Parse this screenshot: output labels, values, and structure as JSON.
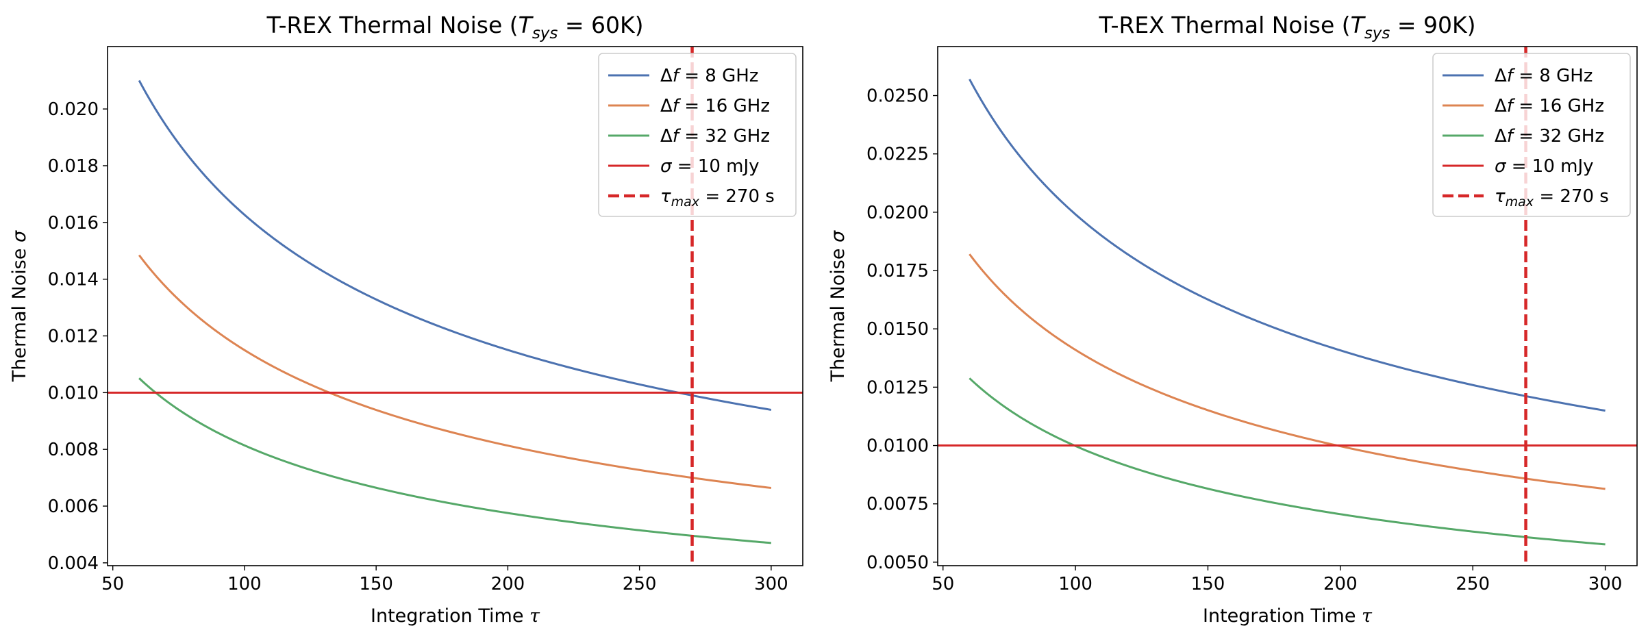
{
  "figure": {
    "panel_count": 2
  },
  "chart_data": [
    {
      "type": "line",
      "title": "T-REX Thermal Noise (T_sys = 60K)",
      "title_parts": {
        "prefix": "T-REX Thermal Noise (",
        "symbol": "T",
        "subscript": "sys",
        "suffix": " = 60K)"
      },
      "xlabel": "Integration Time",
      "xlabel_symbol": "τ",
      "ylabel": "Thermal Noise",
      "ylabel_symbol": "σ",
      "xlim": [
        48,
        312
      ],
      "ylim": [
        0.0039,
        0.0222
      ],
      "x_ticks": [
        50,
        100,
        150,
        200,
        250,
        300
      ],
      "x_tick_labels": [
        "50",
        "100",
        "150",
        "200",
        "250",
        "300"
      ],
      "y_ticks": [
        0.004,
        0.006,
        0.008,
        0.01,
        0.012,
        0.014,
        0.016,
        0.018,
        0.02
      ],
      "y_tick_labels": [
        "0.004",
        "0.006",
        "0.008",
        "0.010",
        "0.012",
        "0.014",
        "0.016",
        "0.018",
        "0.020"
      ],
      "grid": false,
      "legend_position": "top-right",
      "x_range": [
        60,
        300
      ],
      "series": [
        {
          "name": "Δf = 8 GHz",
          "legend_label": "Δf = 8 GHz",
          "color": "#4c72b0",
          "style": "solid",
          "formula": "coef / sqrt(tau)",
          "coef": 0.1627
        },
        {
          "name": "Δf = 16 GHz",
          "legend_label": "Δf = 16 GHz",
          "color": "#dd8452",
          "style": "solid",
          "formula": "coef / sqrt(tau)",
          "coef": 0.115
        },
        {
          "name": "Δf = 32 GHz",
          "legend_label": "Δf = 32 GHz",
          "color": "#55a868",
          "style": "solid",
          "formula": "coef / sqrt(tau)",
          "coef": 0.0814
        }
      ],
      "hlines": [
        {
          "name": "σ = 10 mJy",
          "legend_label": "σ = 10 mJy",
          "y": 0.01,
          "color": "#d62728",
          "style": "solid"
        }
      ],
      "vlines": [
        {
          "name": "τ_max = 270 s",
          "legend_label": "τmax = 270 s",
          "x": 270,
          "color": "#d62728",
          "style": "dashed"
        }
      ]
    },
    {
      "type": "line",
      "title": "T-REX Thermal Noise (T_sys = 90K)",
      "title_parts": {
        "prefix": "T-REX Thermal Noise (",
        "symbol": "T",
        "subscript": "sys",
        "suffix": " = 90K)"
      },
      "xlabel": "Integration Time",
      "xlabel_symbol": "τ",
      "ylabel": "Thermal Noise",
      "ylabel_symbol": "σ",
      "xlim": [
        48,
        312
      ],
      "ylim": [
        0.00485,
        0.0271
      ],
      "x_ticks": [
        50,
        100,
        150,
        200,
        250,
        300
      ],
      "x_tick_labels": [
        "50",
        "100",
        "150",
        "200",
        "250",
        "300"
      ],
      "y_ticks": [
        0.005,
        0.0075,
        0.01,
        0.0125,
        0.015,
        0.0175,
        0.02,
        0.0225,
        0.025
      ],
      "y_tick_labels": [
        "0.0050",
        "0.0075",
        "0.0100",
        "0.0125",
        "0.0150",
        "0.0175",
        "0.0200",
        "0.0225",
        "0.0250"
      ],
      "grid": false,
      "legend_position": "top-right",
      "x_range": [
        60,
        300
      ],
      "series": [
        {
          "name": "Δf = 8 GHz",
          "legend_label": "Δf = 8 GHz",
          "color": "#4c72b0",
          "style": "solid",
          "formula": "coef / sqrt(tau)",
          "coef": 0.1991
        },
        {
          "name": "Δf = 16 GHz",
          "legend_label": "Δf = 16 GHz",
          "color": "#dd8452",
          "style": "solid",
          "formula": "coef / sqrt(tau)",
          "coef": 0.141
        },
        {
          "name": "Δf = 32 GHz",
          "legend_label": "Δf = 32 GHz",
          "color": "#55a868",
          "style": "solid",
          "formula": "coef / sqrt(tau)",
          "coef": 0.0998
        }
      ],
      "hlines": [
        {
          "name": "σ = 10 mJy",
          "legend_label": "σ = 10 mJy",
          "y": 0.01,
          "color": "#d62728",
          "style": "solid"
        }
      ],
      "vlines": [
        {
          "name": "τ_max = 270 s",
          "legend_label": "τmax = 270 s",
          "x": 270,
          "color": "#d62728",
          "style": "dashed"
        }
      ]
    }
  ]
}
